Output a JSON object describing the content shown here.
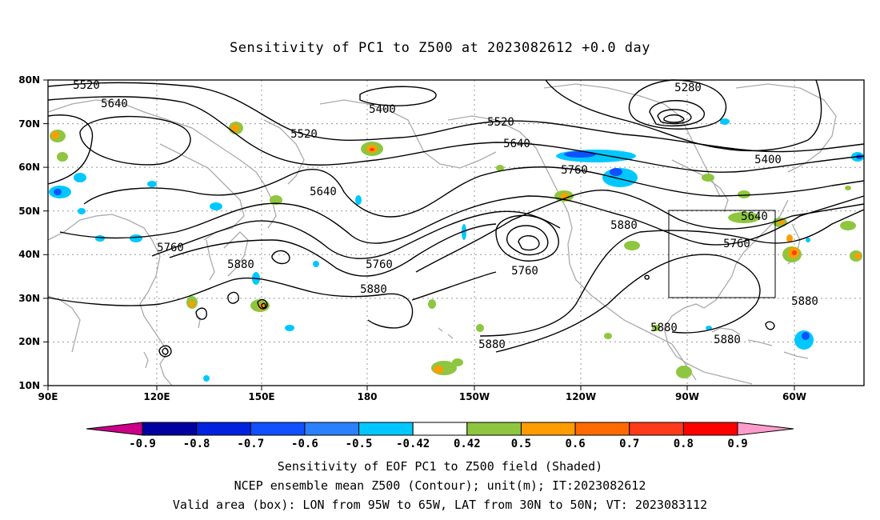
{
  "title": "Sensitivity of PC1 to Z500 at 2023082612 +0.0 day",
  "map": {
    "lat_labels": [
      "80N",
      "70N",
      "60N",
      "50N",
      "40N",
      "30N",
      "20N",
      "10N"
    ],
    "lon_labels": [
      "90E",
      "120E",
      "150E",
      "180",
      "150W",
      "120W",
      "90W",
      "60W"
    ],
    "contour_labels": [
      {
        "text": "5520"
      },
      {
        "text": "5640"
      },
      {
        "text": "5400"
      },
      {
        "text": "5520"
      },
      {
        "text": "5520"
      },
      {
        "text": "5640"
      },
      {
        "text": "5760"
      },
      {
        "text": "5280"
      },
      {
        "text": "5400"
      },
      {
        "text": "5640"
      },
      {
        "text": "5760"
      },
      {
        "text": "5760"
      },
      {
        "text": "5880"
      },
      {
        "text": "5760"
      },
      {
        "text": "5880"
      },
      {
        "text": "5760"
      },
      {
        "text": "5880"
      },
      {
        "text": "5880"
      },
      {
        "text": "5880"
      },
      {
        "text": "5880"
      },
      {
        "text": "5880"
      }
    ],
    "valid_box": {
      "lon_from": "95W",
      "lon_to": "65W",
      "lat_from": "30N",
      "lat_to": "50N"
    }
  },
  "colorbar": {
    "ticks": [
      "-0.9",
      "-0.8",
      "-0.7",
      "-0.6",
      "-0.5",
      "-0.42",
      "0.42",
      "0.5",
      "0.6",
      "0.7",
      "0.8",
      "0.9"
    ],
    "colors": [
      "#0000a0",
      "#0022e0",
      "#1050ff",
      "#2a80ff",
      "#00c8ff",
      "#ffffff",
      "#8ec63f",
      "#ff9c00",
      "#ff6a00",
      "#ff3a1a",
      "#ff0000"
    ],
    "left_tip_color": "#cc0088",
    "right_tip_color": "#ff9ccc"
  },
  "captions": [
    "Sensitivity of EOF PC1 to Z500 field (Shaded)",
    "NCEP ensemble mean Z500 (Contour); unit(m); IT:2023082612",
    "Valid area (box): LON from 95W to 65W, LAT from 30N to 50N; VT: 2023083112"
  ]
}
